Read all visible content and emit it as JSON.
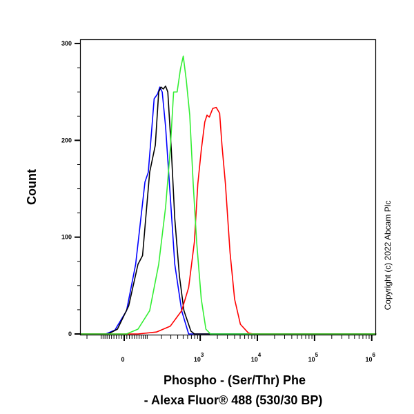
{
  "chart_data": {
    "type": "line",
    "title": "",
    "xlabel_lines": [
      "Phospho - (Ser/Thr) Phe",
      "- Alexa Fluor® 488 (530/30 BP)"
    ],
    "ylabel": "Count",
    "x_scale": "biexponential",
    "xlim": [
      -270,
      1200000
    ],
    "ylim": [
      0,
      300
    ],
    "x_ticks": [
      {
        "value": 0,
        "label": "0",
        "sup": ""
      },
      {
        "value": 1000,
        "label": "10",
        "sup": "3"
      },
      {
        "value": 10000,
        "label": "10",
        "sup": "4"
      },
      {
        "value": 100000,
        "label": "10",
        "sup": "5"
      },
      {
        "value": 1000000,
        "label": "10",
        "sup": "6"
      }
    ],
    "y_ticks": [
      {
        "value": 0,
        "label": "0"
      },
      {
        "value": 100,
        "label": "100"
      },
      {
        "value": 200,
        "label": "200"
      },
      {
        "value": 300,
        "label": "300"
      }
    ],
    "grid": false,
    "legend": "none",
    "series": [
      {
        "color": "#0000ff",
        "points": [
          [
            -270,
            0
          ],
          [
            -76,
            0
          ],
          [
            -36,
            4
          ],
          [
            9,
            24
          ],
          [
            45,
            72
          ],
          [
            88,
            157
          ],
          [
            106,
            167
          ],
          [
            128,
            214
          ],
          [
            143,
            243
          ],
          [
            168,
            248
          ],
          [
            186,
            255
          ],
          [
            207,
            250
          ],
          [
            240,
            214
          ],
          [
            292,
            143
          ],
          [
            354,
            72
          ],
          [
            471,
            24
          ],
          [
            625,
            0
          ],
          [
            1200000,
            0
          ]
        ]
      },
      {
        "color": "#000000",
        "points": [
          [
            -270,
            0
          ],
          [
            -65,
            0
          ],
          [
            -26,
            5
          ],
          [
            17,
            29
          ],
          [
            55,
            72
          ],
          [
            76,
            81
          ],
          [
            114,
            167
          ],
          [
            151,
            195
          ],
          [
            177,
            250
          ],
          [
            196,
            255
          ],
          [
            217,
            253
          ],
          [
            240,
            256
          ],
          [
            264,
            250
          ],
          [
            306,
            190
          ],
          [
            354,
            119
          ],
          [
            429,
            60
          ],
          [
            517,
            24
          ],
          [
            685,
            3
          ],
          [
            790,
            0
          ],
          [
            1200000,
            0
          ]
        ]
      },
      {
        "color": "#ff0000",
        "points": [
          [
            -270,
            0
          ],
          [
            55,
            0
          ],
          [
            159,
            2
          ],
          [
            292,
            8
          ],
          [
            471,
            24
          ],
          [
            625,
            48
          ],
          [
            790,
            95
          ],
          [
            908,
            155
          ],
          [
            1043,
            190
          ],
          [
            1203,
            219
          ],
          [
            1316,
            226
          ],
          [
            1448,
            224
          ],
          [
            1664,
            233
          ],
          [
            1908,
            234
          ],
          [
            2190,
            228
          ],
          [
            2406,
            195
          ],
          [
            2764,
            155
          ],
          [
            3328,
            84
          ],
          [
            4004,
            36
          ],
          [
            5048,
            10
          ],
          [
            6975,
            1
          ],
          [
            8394,
            0
          ],
          [
            1200000,
            0
          ]
        ]
      },
      {
        "color": "#33ee33",
        "points": [
          [
            -270,
            0
          ],
          [
            9,
            0
          ],
          [
            55,
            5
          ],
          [
            114,
            24
          ],
          [
            177,
            72
          ],
          [
            240,
            131
          ],
          [
            292,
            190
          ],
          [
            337,
            250
          ],
          [
            390,
            250
          ],
          [
            449,
            274
          ],
          [
            503,
            287
          ],
          [
            569,
            262
          ],
          [
            655,
            226
          ],
          [
            753,
            155
          ],
          [
            867,
            95
          ],
          [
            1043,
            36
          ],
          [
            1260,
            5
          ],
          [
            1513,
            0
          ],
          [
            1200000,
            0
          ]
        ]
      }
    ]
  },
  "copyright": "Copyright (c) 2022 Abcam Plc"
}
